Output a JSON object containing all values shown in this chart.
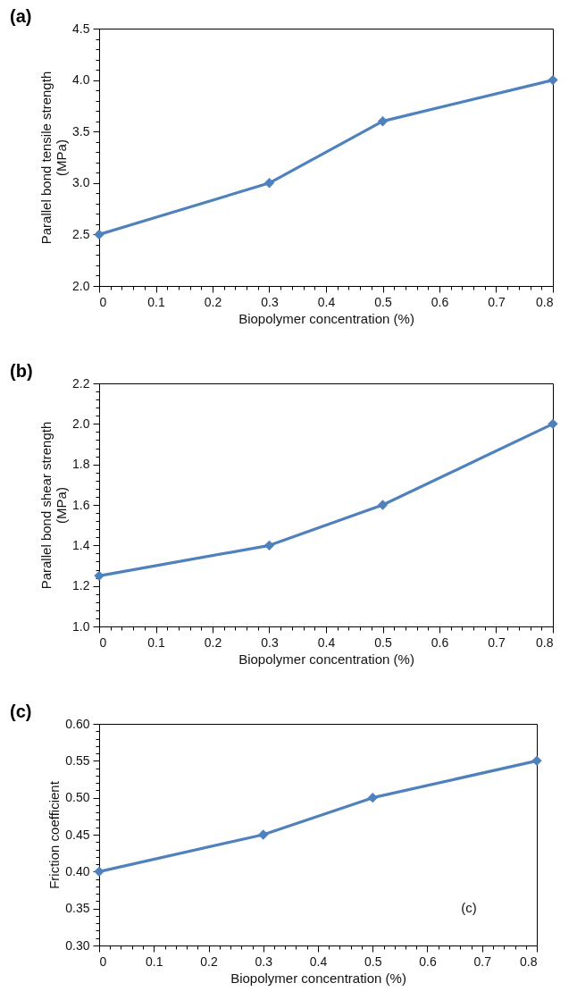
{
  "chart_data": [
    {
      "type": "line",
      "title": "(a)",
      "xlabel": "Biopolymer  concentration (%)",
      "ylabel": "Parallel bond tensile strength\n(MPa)",
      "x": [
        0,
        0.3,
        0.5,
        0.8
      ],
      "series": [
        {
          "color": "#4f81bd",
          "values": [
            2.5,
            3.0,
            3.6,
            4.0
          ]
        }
      ],
      "xlim": [
        0,
        0.8
      ],
      "ylim": [
        2.0,
        4.5
      ],
      "xticks": [
        0,
        {
          "value": 0.02,
          "label": null
        },
        {
          "value": 0.04,
          "label": null
        },
        {
          "value": 0.06,
          "label": null
        },
        {
          "value": 0.08,
          "label": null
        },
        0.1,
        {
          "value": 0.12,
          "label": null
        },
        {
          "value": 0.14,
          "label": null
        },
        {
          "value": 0.16,
          "label": null
        },
        {
          "value": 0.18,
          "label": null
        },
        0.2,
        {
          "value": 0.22,
          "label": null
        },
        {
          "value": 0.24,
          "label": null
        },
        {
          "value": 0.26,
          "label": null
        },
        {
          "value": 0.28,
          "label": null
        },
        0.3,
        {
          "value": 0.32,
          "label": null
        },
        {
          "value": 0.34,
          "label": null
        },
        {
          "value": 0.36,
          "label": null
        },
        {
          "value": 0.38,
          "label": null
        },
        0.4,
        {
          "value": 0.42,
          "label": null
        },
        {
          "value": 0.44,
          "label": null
        },
        {
          "value": 0.46,
          "label": null
        },
        {
          "value": 0.48,
          "label": null
        },
        0.5,
        {
          "value": 0.52,
          "label": null
        },
        {
          "value": 0.54,
          "label": null
        },
        {
          "value": 0.56,
          "label": null
        },
        {
          "value": 0.58,
          "label": null
        },
        0.6,
        {
          "value": 0.62,
          "label": null
        },
        {
          "value": 0.64,
          "label": null
        },
        {
          "value": 0.66,
          "label": null
        },
        {
          "value": 0.68,
          "label": null
        },
        0.7,
        {
          "value": 0.72,
          "label": null
        },
        {
          "value": 0.74,
          "label": null
        },
        {
          "value": 0.76,
          "label": null
        },
        {
          "value": 0.78,
          "label": null
        },
        0.8
      ],
      "yticks": [
        {
          "value": 2.0,
          "label": "2.0"
        },
        {
          "value": 2.1,
          "label": null
        },
        {
          "value": 2.2,
          "label": null
        },
        {
          "value": 2.3,
          "label": null
        },
        {
          "value": 2.4,
          "label": null
        },
        2.5,
        {
          "value": 2.6,
          "label": null
        },
        {
          "value": 2.7,
          "label": null
        },
        {
          "value": 2.8,
          "label": null
        },
        {
          "value": 2.9,
          "label": null
        },
        {
          "value": 3.0,
          "label": "3.0"
        },
        {
          "value": 3.1,
          "label": null
        },
        {
          "value": 3.2,
          "label": null
        },
        {
          "value": 3.3,
          "label": null
        },
        {
          "value": 3.4,
          "label": null
        },
        3.5,
        {
          "value": 3.6,
          "label": null
        },
        {
          "value": 3.7,
          "label": null
        },
        {
          "value": 3.8,
          "label": null
        },
        {
          "value": 3.9,
          "label": null
        },
        {
          "value": 4.0,
          "label": "4.0"
        },
        {
          "value": 4.1,
          "label": null
        },
        {
          "value": 4.2,
          "label": null
        },
        {
          "value": 4.3,
          "label": null
        },
        {
          "value": 4.4,
          "label": null
        },
        4.5
      ],
      "marker": "diamond",
      "line_style": "solid"
    },
    {
      "type": "line",
      "title": "(b)",
      "xlabel": "Biopolymer  concentration (%)",
      "ylabel": "Parallel bond shear strength\n(MPa)",
      "x": [
        0,
        0.3,
        0.5,
        0.8
      ],
      "series": [
        {
          "color": "#4f81bd",
          "values": [
            1.25,
            1.4,
            1.6,
            2.0
          ]
        }
      ],
      "xlim": [
        0,
        0.8
      ],
      "ylim": [
        1.0,
        2.2
      ],
      "xticks": [
        0,
        {
          "value": 0.02,
          "label": null
        },
        {
          "value": 0.04,
          "label": null
        },
        {
          "value": 0.06,
          "label": null
        },
        {
          "value": 0.08,
          "label": null
        },
        0.1,
        {
          "value": 0.12,
          "label": null
        },
        {
          "value": 0.14,
          "label": null
        },
        {
          "value": 0.16,
          "label": null
        },
        {
          "value": 0.18,
          "label": null
        },
        0.2,
        {
          "value": 0.22,
          "label": null
        },
        {
          "value": 0.24,
          "label": null
        },
        {
          "value": 0.26,
          "label": null
        },
        {
          "value": 0.28,
          "label": null
        },
        0.3,
        {
          "value": 0.32,
          "label": null
        },
        {
          "value": 0.34,
          "label": null
        },
        {
          "value": 0.36,
          "label": null
        },
        {
          "value": 0.38,
          "label": null
        },
        0.4,
        {
          "value": 0.42,
          "label": null
        },
        {
          "value": 0.44,
          "label": null
        },
        {
          "value": 0.46,
          "label": null
        },
        {
          "value": 0.48,
          "label": null
        },
        0.5,
        {
          "value": 0.52,
          "label": null
        },
        {
          "value": 0.54,
          "label": null
        },
        {
          "value": 0.56,
          "label": null
        },
        {
          "value": 0.58,
          "label": null
        },
        0.6,
        {
          "value": 0.62,
          "label": null
        },
        {
          "value": 0.64,
          "label": null
        },
        {
          "value": 0.66,
          "label": null
        },
        {
          "value": 0.68,
          "label": null
        },
        0.7,
        {
          "value": 0.72,
          "label": null
        },
        {
          "value": 0.74,
          "label": null
        },
        {
          "value": 0.76,
          "label": null
        },
        {
          "value": 0.78,
          "label": null
        },
        0.8
      ],
      "yticks": [
        {
          "value": 1.0,
          "label": "1.0"
        },
        {
          "value": 1.04,
          "label": null
        },
        {
          "value": 1.08,
          "label": null
        },
        {
          "value": 1.12,
          "label": null
        },
        {
          "value": 1.16,
          "label": null
        },
        1.2,
        {
          "value": 1.24,
          "label": null
        },
        {
          "value": 1.28,
          "label": null
        },
        {
          "value": 1.32,
          "label": null
        },
        {
          "value": 1.36,
          "label": null
        },
        1.4,
        {
          "value": 1.44,
          "label": null
        },
        {
          "value": 1.48,
          "label": null
        },
        {
          "value": 1.52,
          "label": null
        },
        {
          "value": 1.56,
          "label": null
        },
        1.6,
        {
          "value": 1.64,
          "label": null
        },
        {
          "value": 1.68,
          "label": null
        },
        {
          "value": 1.72,
          "label": null
        },
        {
          "value": 1.76,
          "label": null
        },
        1.8,
        {
          "value": 1.84,
          "label": null
        },
        {
          "value": 1.88,
          "label": null
        },
        {
          "value": 1.92,
          "label": null
        },
        {
          "value": 1.96,
          "label": null
        },
        {
          "value": 2.0,
          "label": "2.0"
        },
        {
          "value": 2.04,
          "label": null
        },
        {
          "value": 2.08,
          "label": null
        },
        {
          "value": 2.12,
          "label": null
        },
        {
          "value": 2.16,
          "label": null
        },
        2.2
      ],
      "marker": "diamond",
      "line_style": "solid"
    },
    {
      "type": "line",
      "title": "(c)",
      "xlabel": "Biopolymer  concentration (%)",
      "ylabel": "Friction coefficient",
      "x": [
        0,
        0.3,
        0.5,
        0.8
      ],
      "series": [
        {
          "color": "#4f81bd",
          "values": [
            0.4,
            0.45,
            0.5,
            0.55
          ]
        }
      ],
      "xlim": [
        0,
        0.8
      ],
      "ylim": [
        0.3,
        0.6
      ],
      "xticks": [
        0,
        {
          "value": 0.02,
          "label": null
        },
        {
          "value": 0.04,
          "label": null
        },
        {
          "value": 0.06,
          "label": null
        },
        {
          "value": 0.08,
          "label": null
        },
        0.1,
        {
          "value": 0.12,
          "label": null
        },
        {
          "value": 0.14,
          "label": null
        },
        {
          "value": 0.16,
          "label": null
        },
        {
          "value": 0.18,
          "label": null
        },
        0.2,
        {
          "value": 0.22,
          "label": null
        },
        {
          "value": 0.24,
          "label": null
        },
        {
          "value": 0.26,
          "label": null
        },
        {
          "value": 0.28,
          "label": null
        },
        0.3,
        {
          "value": 0.32,
          "label": null
        },
        {
          "value": 0.34,
          "label": null
        },
        {
          "value": 0.36,
          "label": null
        },
        {
          "value": 0.38,
          "label": null
        },
        0.4,
        {
          "value": 0.42,
          "label": null
        },
        {
          "value": 0.44,
          "label": null
        },
        {
          "value": 0.46,
          "label": null
        },
        {
          "value": 0.48,
          "label": null
        },
        0.5,
        {
          "value": 0.52,
          "label": null
        },
        {
          "value": 0.54,
          "label": null
        },
        {
          "value": 0.56,
          "label": null
        },
        {
          "value": 0.58,
          "label": null
        },
        0.6,
        {
          "value": 0.62,
          "label": null
        },
        {
          "value": 0.64,
          "label": null
        },
        {
          "value": 0.66,
          "label": null
        },
        {
          "value": 0.68,
          "label": null
        },
        0.7,
        {
          "value": 0.72,
          "label": null
        },
        {
          "value": 0.74,
          "label": null
        },
        {
          "value": 0.76,
          "label": null
        },
        {
          "value": 0.78,
          "label": null
        },
        0.8
      ],
      "yticks": [
        {
          "value": 0.3,
          "label": "0.30"
        },
        {
          "value": 0.31,
          "label": null
        },
        {
          "value": 0.32,
          "label": null
        },
        {
          "value": 0.33,
          "label": null
        },
        {
          "value": 0.34,
          "label": null
        },
        0.35,
        {
          "value": 0.36,
          "label": null
        },
        {
          "value": 0.37,
          "label": null
        },
        {
          "value": 0.38,
          "label": null
        },
        {
          "value": 0.39,
          "label": null
        },
        {
          "value": 0.4,
          "label": "0.40"
        },
        {
          "value": 0.41,
          "label": null
        },
        {
          "value": 0.42,
          "label": null
        },
        {
          "value": 0.43,
          "label": null
        },
        {
          "value": 0.44,
          "label": null
        },
        0.45,
        {
          "value": 0.46,
          "label": null
        },
        {
          "value": 0.47,
          "label": null
        },
        {
          "value": 0.48,
          "label": null
        },
        {
          "value": 0.49,
          "label": null
        },
        {
          "value": 0.5,
          "label": "0.50"
        },
        {
          "value": 0.51,
          "label": null
        },
        {
          "value": 0.52,
          "label": null
        },
        {
          "value": 0.53,
          "label": null
        },
        {
          "value": 0.54,
          "label": null
        },
        0.55,
        {
          "value": 0.56,
          "label": null
        },
        {
          "value": 0.57,
          "label": null
        },
        {
          "value": 0.58,
          "label": null
        },
        {
          "value": 0.59,
          "label": null
        },
        {
          "value": 0.6,
          "label": "0.60"
        }
      ],
      "annotations": [
        "(c)"
      ],
      "marker": "diamond",
      "line_style": "solid"
    }
  ]
}
